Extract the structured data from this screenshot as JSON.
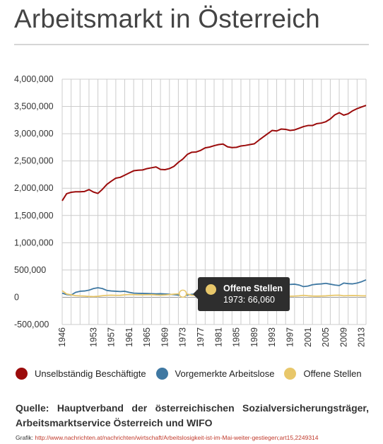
{
  "title": "Arbeitsmarkt in Österreich",
  "colors": {
    "employed": "#9b0b0b",
    "unemployed": "#3f78a2",
    "vacancies": "#e8c76a",
    "grid": "#cccccc",
    "zero_line": "#999999"
  },
  "chart_data": {
    "type": "line",
    "ylim": [
      -500000,
      4000000
    ],
    "yticks": [
      4000000,
      3500000,
      3000000,
      2500000,
      2000000,
      1500000,
      1000000,
      500000,
      0,
      -500000
    ],
    "ytick_labels": [
      "4,000,000",
      "3,500,000",
      "3,000,000",
      "2,500,000",
      "2,000,000",
      "1,500,000",
      "1,000,000",
      "500,000",
      "0",
      "-500,000"
    ],
    "xlim": [
      1946,
      2014
    ],
    "xticks": [
      1946,
      1953,
      1957,
      1961,
      1965,
      1969,
      1973,
      1977,
      1981,
      1985,
      1989,
      1993,
      1997,
      2001,
      2005,
      2009,
      2013
    ],
    "grid": true,
    "legend_position": "bottom",
    "series": [
      {
        "name": "Unselbständig Beschäftigte",
        "color": "#9b0b0b",
        "points": [
          [
            1946,
            1770000
          ],
          [
            1947,
            1900000
          ],
          [
            1948,
            1925000
          ],
          [
            1949,
            1935000
          ],
          [
            1950,
            1935000
          ],
          [
            1951,
            1940000
          ],
          [
            1952,
            1975000
          ],
          [
            1953,
            1930000
          ],
          [
            1954,
            1905000
          ],
          [
            1955,
            1980000
          ],
          [
            1956,
            2070000
          ],
          [
            1957,
            2130000
          ],
          [
            1958,
            2185000
          ],
          [
            1959,
            2200000
          ],
          [
            1960,
            2240000
          ],
          [
            1961,
            2280000
          ],
          [
            1962,
            2320000
          ],
          [
            1963,
            2330000
          ],
          [
            1964,
            2335000
          ],
          [
            1965,
            2360000
          ],
          [
            1966,
            2375000
          ],
          [
            1967,
            2390000
          ],
          [
            1968,
            2345000
          ],
          [
            1969,
            2340000
          ],
          [
            1970,
            2360000
          ],
          [
            1971,
            2400000
          ],
          [
            1972,
            2475000
          ],
          [
            1973,
            2535000
          ],
          [
            1974,
            2620000
          ],
          [
            1975,
            2660000
          ],
          [
            1976,
            2665000
          ],
          [
            1977,
            2695000
          ],
          [
            1978,
            2740000
          ],
          [
            1979,
            2755000
          ],
          [
            1980,
            2780000
          ],
          [
            1981,
            2800000
          ],
          [
            1982,
            2810000
          ],
          [
            1983,
            2760000
          ],
          [
            1984,
            2745000
          ],
          [
            1985,
            2750000
          ],
          [
            1986,
            2775000
          ],
          [
            1987,
            2785000
          ],
          [
            1988,
            2800000
          ],
          [
            1989,
            2815000
          ],
          [
            1990,
            2880000
          ],
          [
            1991,
            2940000
          ],
          [
            1992,
            3000000
          ],
          [
            1993,
            3060000
          ],
          [
            1994,
            3050000
          ],
          [
            1995,
            3085000
          ],
          [
            1996,
            3080000
          ],
          [
            1997,
            3060000
          ],
          [
            1998,
            3070000
          ],
          [
            1999,
            3100000
          ],
          [
            2000,
            3130000
          ],
          [
            2001,
            3150000
          ],
          [
            2002,
            3150000
          ],
          [
            2003,
            3185000
          ],
          [
            2004,
            3195000
          ],
          [
            2005,
            3220000
          ],
          [
            2006,
            3270000
          ],
          [
            2007,
            3345000
          ],
          [
            2008,
            3385000
          ],
          [
            2009,
            3340000
          ],
          [
            2010,
            3365000
          ],
          [
            2011,
            3420000
          ],
          [
            2012,
            3460000
          ],
          [
            2013,
            3490000
          ],
          [
            2014,
            3520000
          ]
        ]
      },
      {
        "name": "Vorgemerkte Arbeitslose",
        "color": "#3f78a2",
        "points": [
          [
            1946,
            75000
          ],
          [
            1947,
            50000
          ],
          [
            1948,
            40000
          ],
          [
            1949,
            90000
          ],
          [
            1950,
            110000
          ],
          [
            1951,
            115000
          ],
          [
            1952,
            130000
          ],
          [
            1953,
            160000
          ],
          [
            1954,
            175000
          ],
          [
            1955,
            160000
          ],
          [
            1956,
            125000
          ],
          [
            1957,
            115000
          ],
          [
            1958,
            110000
          ],
          [
            1959,
            105000
          ],
          [
            1960,
            110000
          ],
          [
            1961,
            90000
          ],
          [
            1962,
            75000
          ],
          [
            1963,
            72000
          ],
          [
            1964,
            70000
          ],
          [
            1965,
            68000
          ],
          [
            1966,
            65000
          ],
          [
            1967,
            62000
          ],
          [
            1968,
            65000
          ],
          [
            1969,
            60000
          ],
          [
            1970,
            55000
          ],
          [
            1971,
            48000
          ],
          [
            1972,
            40000
          ],
          [
            1973,
            35000
          ],
          [
            1974,
            40000
          ],
          [
            1975,
            55000
          ],
          [
            1976,
            55000
          ],
          [
            1977,
            52000
          ],
          [
            1978,
            60000
          ],
          [
            1979,
            58000
          ],
          [
            1980,
            55000
          ],
          [
            1981,
            70000
          ],
          [
            1982,
            105000
          ],
          [
            1983,
            130000
          ],
          [
            1984,
            130000
          ],
          [
            1985,
            140000
          ],
          [
            1986,
            150000
          ],
          [
            1987,
            160000
          ],
          [
            1988,
            160000
          ],
          [
            1989,
            150000
          ],
          [
            1990,
            165000
          ],
          [
            1991,
            185000
          ],
          [
            1992,
            195000
          ],
          [
            1993,
            220000
          ],
          [
            1994,
            215000
          ],
          [
            1995,
            215000
          ],
          [
            1996,
            230000
          ],
          [
            1997,
            235000
          ],
          [
            1998,
            240000
          ],
          [
            1999,
            225000
          ],
          [
            2000,
            195000
          ],
          [
            2001,
            205000
          ],
          [
            2002,
            230000
          ],
          [
            2003,
            240000
          ],
          [
            2004,
            245000
          ],
          [
            2005,
            255000
          ],
          [
            2006,
            240000
          ],
          [
            2007,
            225000
          ],
          [
            2008,
            215000
          ],
          [
            2009,
            260000
          ],
          [
            2010,
            250000
          ],
          [
            2011,
            245000
          ],
          [
            2012,
            260000
          ],
          [
            2013,
            285000
          ],
          [
            2014,
            320000
          ]
        ]
      },
      {
        "name": "Offene Stellen",
        "color": "#e8c76a",
        "points": [
          [
            1946,
            120000
          ],
          [
            1947,
            60000
          ],
          [
            1948,
            45000
          ],
          [
            1949,
            30000
          ],
          [
            1950,
            25000
          ],
          [
            1951,
            22000
          ],
          [
            1952,
            15000
          ],
          [
            1953,
            12000
          ],
          [
            1954,
            18000
          ],
          [
            1955,
            28000
          ],
          [
            1956,
            35000
          ],
          [
            1957,
            38000
          ],
          [
            1958,
            35000
          ],
          [
            1959,
            36000
          ],
          [
            1960,
            45000
          ],
          [
            1961,
            50000
          ],
          [
            1962,
            48000
          ],
          [
            1963,
            45000
          ],
          [
            1964,
            45000
          ],
          [
            1965,
            46000
          ],
          [
            1966,
            48000
          ],
          [
            1967,
            42000
          ],
          [
            1968,
            38000
          ],
          [
            1969,
            42000
          ],
          [
            1970,
            50000
          ],
          [
            1971,
            58000
          ],
          [
            1972,
            62000
          ],
          [
            1973,
            66060
          ],
          [
            1974,
            60000
          ],
          [
            1975,
            38000
          ],
          [
            1976,
            35000
          ],
          [
            1977,
            40000
          ],
          [
            1978,
            36000
          ],
          [
            1979,
            38000
          ],
          [
            1980,
            40000
          ],
          [
            1981,
            33000
          ],
          [
            1982,
            20000
          ],
          [
            1983,
            18000
          ],
          [
            1984,
            18000
          ],
          [
            1985,
            20000
          ],
          [
            1986,
            22000
          ],
          [
            1987,
            22000
          ],
          [
            1988,
            27000
          ],
          [
            1989,
            40000
          ],
          [
            1990,
            50000
          ],
          [
            1991,
            48000
          ],
          [
            1992,
            42000
          ],
          [
            1993,
            33000
          ],
          [
            1994,
            30000
          ],
          [
            1995,
            26000
          ],
          [
            1996,
            22000
          ],
          [
            1997,
            20000
          ],
          [
            1998,
            22000
          ],
          [
            1999,
            27000
          ],
          [
            2000,
            35000
          ],
          [
            2001,
            28000
          ],
          [
            2002,
            23000
          ],
          [
            2003,
            21000
          ],
          [
            2004,
            23000
          ],
          [
            2005,
            26000
          ],
          [
            2006,
            32000
          ],
          [
            2007,
            37000
          ],
          [
            2008,
            38000
          ],
          [
            2009,
            27000
          ],
          [
            2010,
            30000
          ],
          [
            2011,
            32000
          ],
          [
            2012,
            30000
          ],
          [
            2013,
            27000
          ],
          [
            2014,
            26000
          ]
        ]
      }
    ]
  },
  "tooltip": {
    "series": "Offene Stellen",
    "label": "1973: 66,060",
    "year": 1973,
    "value": 66060
  },
  "legend": [
    {
      "label": "Unselbständig Beschäftigte",
      "color": "#9b0b0b"
    },
    {
      "label": "Vorgemerkte Arbeitslose",
      "color": "#3f78a2"
    },
    {
      "label": "Offene Stellen",
      "color": "#e8c76a"
    }
  ],
  "source": "Quelle: Hauptverband der österreichischen Sozialversicherungsträger, Arbeitsmarktservice Österreich und WIFO",
  "credit": {
    "prefix": "Grafik:",
    "url": "http://www.nachrichten.at/nachrichten/wirtschaft/Arbeitslosigkeit-ist-im-Mai-weiter-gestiegen;art15,2249314"
  }
}
